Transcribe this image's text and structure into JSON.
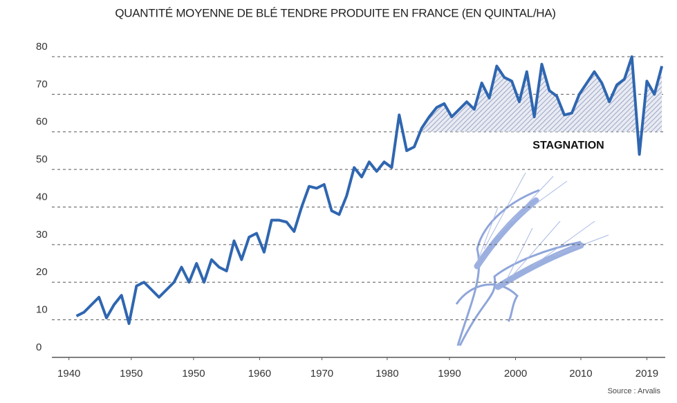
{
  "chart_data": {
    "type": "line",
    "title": "QUANTITÉ MOYENNE DE BLÉ TENDRE PRODUITE EN FRANCE (EN QUINTAL/HA)",
    "source": "Source : Arvalis",
    "annotation": "STAGNATION",
    "shade_from": 1985,
    "shade_baseline": 60,
    "x": [
      1941,
      1942,
      1943,
      1944,
      1945,
      1946,
      1947,
      1948,
      1949,
      1950,
      1951,
      1952,
      1953,
      1954,
      1955,
      1956,
      1957,
      1958,
      1959,
      1960,
      1961,
      1962,
      1963,
      1964,
      1965,
      1966,
      1967,
      1968,
      1969,
      1970,
      1971,
      1972,
      1973,
      1974,
      1975,
      1976,
      1977,
      1978,
      1979,
      1980,
      1981,
      1982,
      1983,
      1984,
      1985,
      1986,
      1987,
      1988,
      1989,
      1990,
      1991,
      1992,
      1993,
      1994,
      1995,
      1996,
      1997,
      1998,
      1999,
      2000,
      2001,
      2002,
      2003,
      2004,
      2005,
      2006,
      2007,
      2008,
      2009,
      2010,
      2011,
      2012,
      2013,
      2014,
      2015,
      2016,
      2017,
      2018,
      2019
    ],
    "series": [
      {
        "name": "Blé tendre",
        "color": "#2f66b0",
        "values": [
          11,
          12,
          14,
          16,
          10.5,
          14,
          16.5,
          9,
          19,
          20,
          18,
          16,
          18,
          20,
          24,
          20,
          25,
          20,
          26,
          24,
          23,
          31,
          26,
          32,
          33,
          28,
          36.5,
          36.5,
          36,
          33.5,
          40,
          45.5,
          45,
          46,
          39,
          38,
          43,
          50.5,
          48,
          52,
          49.5,
          52,
          50.5,
          64.5,
          55,
          56,
          61,
          64,
          66.5,
          67.5,
          64,
          66,
          68,
          66,
          73,
          69,
          77.5,
          74.5,
          73.5,
          68,
          76,
          64,
          78,
          71,
          69.5,
          64.5,
          65,
          70,
          73,
          76,
          73,
          68,
          72.5,
          74,
          80,
          54,
          73.5,
          70,
          77.5
        ]
      }
    ],
    "xlim": [
      1938,
      2020
    ],
    "xticks": [
      {
        "value": 1940,
        "label": "1940"
      },
      {
        "value": 1948.3,
        "label": "1950"
      },
      {
        "value": 1956.6,
        "label": "1950"
      },
      {
        "value": 1965.4,
        "label": "1960"
      },
      {
        "value": 1973.7,
        "label": "1970"
      },
      {
        "value": 1982.4,
        "label": "1980"
      },
      {
        "value": 1990.7,
        "label": "1990"
      },
      {
        "value": 1999.5,
        "label": "2000"
      },
      {
        "value": 2008.2,
        "label": "2010"
      },
      {
        "value": 2017,
        "label": "2019"
      }
    ],
    "ylim": [
      0,
      80
    ],
    "yticks": [
      0,
      10,
      20,
      30,
      40,
      50,
      60,
      70,
      80
    ],
    "grid": true
  }
}
